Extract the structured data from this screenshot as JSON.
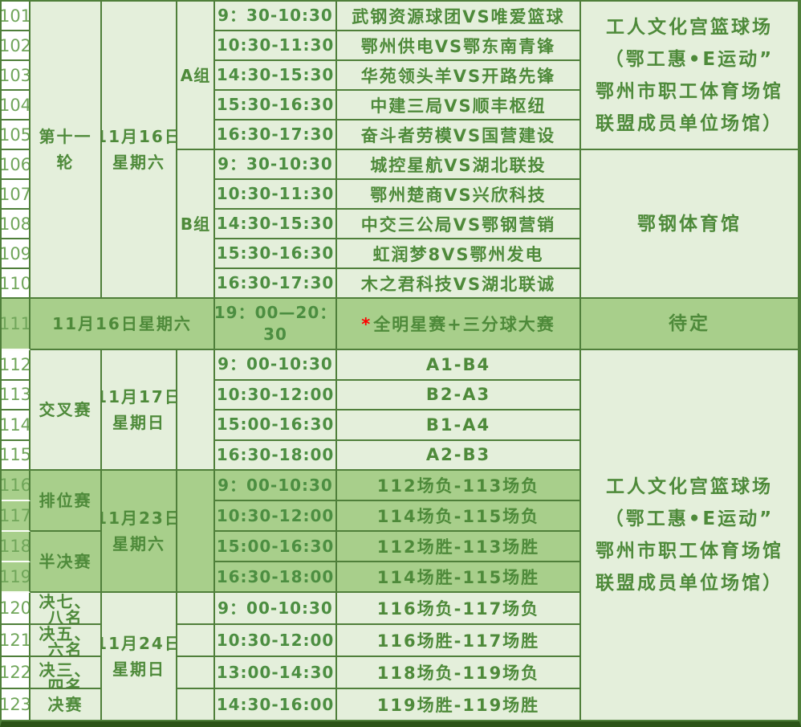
{
  "colors": {
    "light_section_bg": "#e4efdb",
    "highlight_section_bg": "#a8cf8b",
    "grid_border": "#4f7f3a",
    "bottom_border": "#2c5418",
    "text_green": "#4e8a3a",
    "asterisk_red": "#fe0000"
  },
  "table": {
    "row_numbers": [
      "101",
      "102",
      "103",
      "104",
      "105",
      "106",
      "107",
      "108",
      "109",
      "110",
      "111",
      "112",
      "113",
      "114",
      "115",
      "116",
      "117",
      "118",
      "119",
      "120",
      "121",
      "122",
      "123"
    ],
    "cells": [
      {
        "r": 1,
        "c": 2,
        "rs": 10,
        "kind": "round",
        "lines": [
          "第十一",
          "轮"
        ]
      },
      {
        "r": 1,
        "c": 3,
        "rs": 10,
        "kind": "date",
        "lines": [
          "11月16日",
          "星期六"
        ]
      },
      {
        "r": 1,
        "c": 4,
        "rs": 5,
        "kind": "group",
        "lines": [
          "A组"
        ]
      },
      {
        "r": 6,
        "c": 4,
        "rs": 5,
        "kind": "group",
        "lines": [
          "B组"
        ]
      },
      {
        "r": 11,
        "c": 2,
        "cs": 3,
        "kind": "date",
        "lines": [
          "11月16日星期六"
        ]
      },
      {
        "r": 12,
        "c": 2,
        "rs": 4,
        "kind": "round",
        "lines": [
          "交叉赛"
        ]
      },
      {
        "r": 16,
        "c": 2,
        "rs": 2,
        "kind": "round",
        "lines": [
          "排位赛"
        ]
      },
      {
        "r": 18,
        "c": 2,
        "rs": 2,
        "kind": "round",
        "lines": [
          "半决赛"
        ]
      },
      {
        "r": 20,
        "c": 2,
        "kind": "round",
        "clip": 1,
        "lines": [
          "决七、",
          "八名"
        ]
      },
      {
        "r": 21,
        "c": 2,
        "kind": "round",
        "clip": 1,
        "lines": [
          "决五、",
          "六名"
        ]
      },
      {
        "r": 22,
        "c": 2,
        "kind": "round",
        "clip": 2,
        "lines": [
          "决三、",
          "四名"
        ]
      },
      {
        "r": 23,
        "c": 2,
        "kind": "round",
        "lines": [
          "决赛"
        ]
      },
      {
        "r": 12,
        "c": 3,
        "rs": 4,
        "kind": "date",
        "lines": [
          "11月17日",
          "星期日"
        ]
      },
      {
        "r": 16,
        "c": 3,
        "rs": 4,
        "kind": "date",
        "lines": [
          "11月23日",
          "星期六"
        ]
      },
      {
        "r": 20,
        "c": 3,
        "rs": 4,
        "kind": "date",
        "lines": [
          "11月24日",
          "星期日"
        ]
      },
      {
        "r": 12,
        "c": 4,
        "rs": 4,
        "kind": "group",
        "lines": []
      },
      {
        "r": 16,
        "c": 4,
        "rs": 4,
        "kind": "group",
        "lines": []
      },
      {
        "r": 20,
        "c": 4,
        "kind": "group",
        "lines": []
      },
      {
        "r": 21,
        "c": 4,
        "kind": "group",
        "lines": []
      },
      {
        "r": 22,
        "c": 4,
        "kind": "group",
        "lines": []
      },
      {
        "r": 23,
        "c": 4,
        "kind": "group",
        "lines": []
      },
      {
        "r": 1,
        "c": 5,
        "kind": "time",
        "lines": [
          "9：30-10:30"
        ]
      },
      {
        "r": 2,
        "c": 5,
        "kind": "time",
        "lines": [
          "10:30-11:30"
        ]
      },
      {
        "r": 3,
        "c": 5,
        "kind": "time",
        "lines": [
          "14:30-15:30"
        ]
      },
      {
        "r": 4,
        "c": 5,
        "kind": "time",
        "lines": [
          "15:30-16:30"
        ]
      },
      {
        "r": 5,
        "c": 5,
        "kind": "time",
        "lines": [
          "16:30-17:30"
        ]
      },
      {
        "r": 6,
        "c": 5,
        "kind": "time",
        "lines": [
          "9：30-10:30"
        ]
      },
      {
        "r": 7,
        "c": 5,
        "kind": "time",
        "lines": [
          "10:30-11:30"
        ]
      },
      {
        "r": 8,
        "c": 5,
        "kind": "time",
        "lines": [
          "14:30-15:30"
        ]
      },
      {
        "r": 9,
        "c": 5,
        "kind": "time",
        "lines": [
          "15:30-16:30"
        ]
      },
      {
        "r": 10,
        "c": 5,
        "kind": "time",
        "lines": [
          "16:30-17:30"
        ]
      },
      {
        "r": 11,
        "c": 5,
        "kind": "time",
        "lines": [
          "19：00—20：",
          "30"
        ]
      },
      {
        "r": 12,
        "c": 5,
        "kind": "time",
        "lines": [
          "9：00-10:30"
        ]
      },
      {
        "r": 13,
        "c": 5,
        "kind": "time",
        "lines": [
          "10:30-12:00"
        ]
      },
      {
        "r": 14,
        "c": 5,
        "kind": "time",
        "lines": [
          "15:00-16:30"
        ]
      },
      {
        "r": 15,
        "c": 5,
        "kind": "time",
        "lines": [
          "16:30-18:00"
        ]
      },
      {
        "r": 16,
        "c": 5,
        "kind": "time",
        "lines": [
          "9：00-10:30"
        ]
      },
      {
        "r": 17,
        "c": 5,
        "kind": "time",
        "lines": [
          "10:30-12:00"
        ]
      },
      {
        "r": 18,
        "c": 5,
        "kind": "time",
        "lines": [
          "15:00-16:30"
        ]
      },
      {
        "r": 19,
        "c": 5,
        "kind": "time",
        "lines": [
          "16:30-18:00"
        ]
      },
      {
        "r": 20,
        "c": 5,
        "kind": "time",
        "lines": [
          "9：00-10:30"
        ]
      },
      {
        "r": 21,
        "c": 5,
        "kind": "time",
        "lines": [
          "10:30-12:00"
        ]
      },
      {
        "r": 22,
        "c": 5,
        "kind": "time",
        "lines": [
          "13:00-14:30"
        ]
      },
      {
        "r": 23,
        "c": 5,
        "kind": "time",
        "lines": [
          "14:30-16:00"
        ]
      },
      {
        "r": 1,
        "c": 6,
        "kind": "match",
        "lines": [
          "武钢资源球团VS唯爱篮球"
        ]
      },
      {
        "r": 2,
        "c": 6,
        "kind": "match",
        "lines": [
          "鄂州供电VS鄂东南青锋"
        ]
      },
      {
        "r": 3,
        "c": 6,
        "kind": "match",
        "lines": [
          "华苑领头羊VS开路先锋"
        ]
      },
      {
        "r": 4,
        "c": 6,
        "kind": "match",
        "lines": [
          "中建三局VS顺丰枢纽"
        ]
      },
      {
        "r": 5,
        "c": 6,
        "kind": "match",
        "lines": [
          "奋斗者劳模VS国营建设"
        ]
      },
      {
        "r": 6,
        "c": 6,
        "kind": "match",
        "lines": [
          "城控星航VS湖北联投"
        ]
      },
      {
        "r": 7,
        "c": 6,
        "kind": "match",
        "lines": [
          "鄂州楚商VS兴欣科技"
        ]
      },
      {
        "r": 8,
        "c": 6,
        "kind": "match",
        "lines": [
          "中交三公局VS鄂钢营销"
        ]
      },
      {
        "r": 9,
        "c": 6,
        "kind": "match",
        "lines": [
          "虹润梦8VS鄂州发电"
        ]
      },
      {
        "r": 10,
        "c": 6,
        "kind": "match",
        "lines": [
          "木之君科技VS湖北联诚"
        ]
      },
      {
        "r": 11,
        "c": 6,
        "kind": "match",
        "star": "*",
        "lines": [
          "全明星赛+三分球大赛"
        ]
      },
      {
        "r": 12,
        "c": 6,
        "kind": "match",
        "lines": [
          "A1-B4"
        ]
      },
      {
        "r": 13,
        "c": 6,
        "kind": "match",
        "lines": [
          "B2-A3"
        ]
      },
      {
        "r": 14,
        "c": 6,
        "kind": "match",
        "lines": [
          "B1-A4"
        ]
      },
      {
        "r": 15,
        "c": 6,
        "kind": "match",
        "lines": [
          "A2-B3"
        ]
      },
      {
        "r": 16,
        "c": 6,
        "kind": "match",
        "lines": [
          "112场负-113场负"
        ]
      },
      {
        "r": 17,
        "c": 6,
        "kind": "match",
        "lines": [
          "114场负-115场负"
        ]
      },
      {
        "r": 18,
        "c": 6,
        "kind": "match",
        "lines": [
          "112场胜-113场胜"
        ]
      },
      {
        "r": 19,
        "c": 6,
        "kind": "match",
        "lines": [
          "114场胜-115场胜"
        ]
      },
      {
        "r": 20,
        "c": 6,
        "kind": "match",
        "lines": [
          "116场负-117场负"
        ]
      },
      {
        "r": 21,
        "c": 6,
        "kind": "match",
        "lines": [
          "116场胜-117场胜"
        ]
      },
      {
        "r": 22,
        "c": 6,
        "kind": "match",
        "lines": [
          "118场负-119场负"
        ]
      },
      {
        "r": 23,
        "c": 6,
        "kind": "match",
        "lines": [
          "119场胜-119场胜"
        ]
      },
      {
        "r": 1,
        "c": 7,
        "rs": 5,
        "kind": "venue",
        "lines": [
          "工人文化宫篮球场",
          "（鄂工惠•E运动”",
          "鄂州市职工体育场馆",
          "联盟成员单位场馆）"
        ]
      },
      {
        "r": 6,
        "c": 7,
        "rs": 5,
        "kind": "venue",
        "lines": [
          "鄂钢体育馆"
        ]
      },
      {
        "r": 11,
        "c": 7,
        "kind": "venue",
        "lines": [
          "待定"
        ]
      },
      {
        "r": 12,
        "c": 7,
        "rs": 12,
        "kind": "venue",
        "lines": [
          "工人文化宫篮球场",
          "（鄂工惠•E运动”",
          "鄂州市职工体育场馆",
          "联盟成员单位场馆）"
        ]
      }
    ]
  }
}
